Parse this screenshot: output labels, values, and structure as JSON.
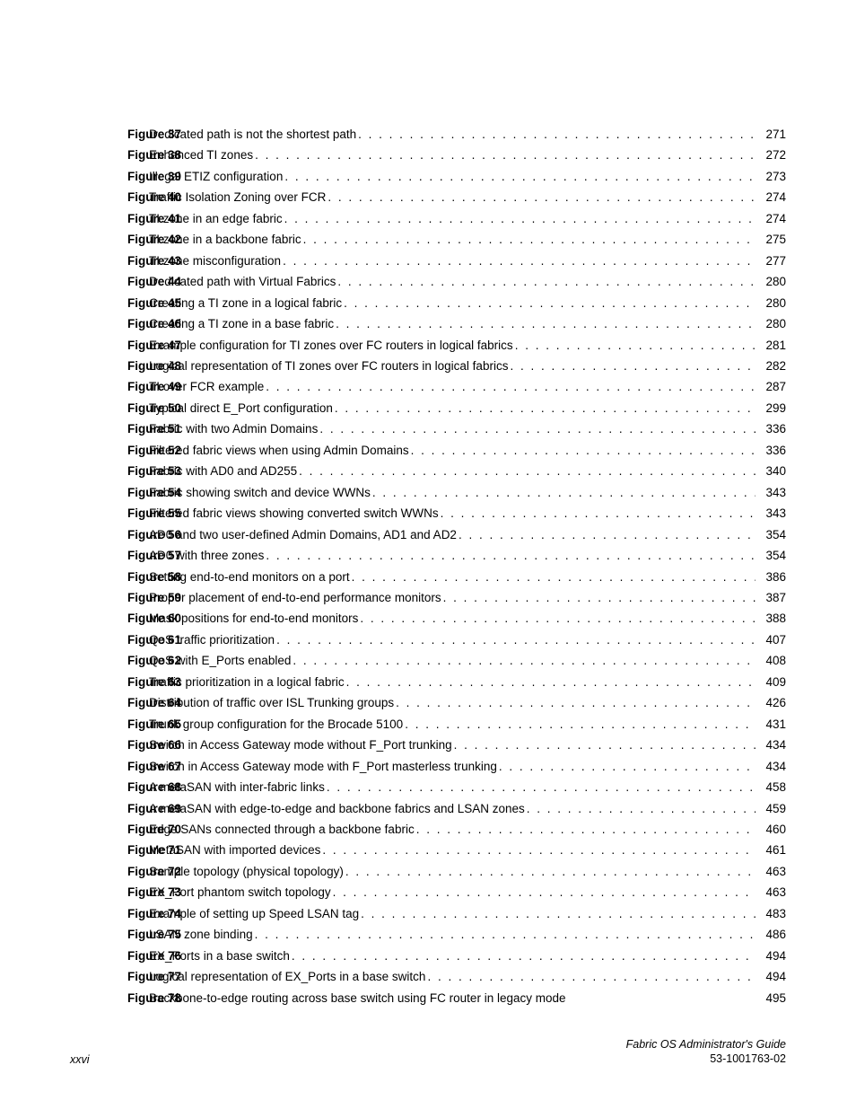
{
  "text_color": "#000000",
  "background_color": "#ffffff",
  "label_font_size": 13.5,
  "label_font_weight": "bold",
  "body_font_size": 13.5,
  "line_height": 23.45,
  "footer_font_size": 12.5,
  "figures": [
    {
      "num": "Figure 37",
      "title": "Dedicated path is not the shortest path",
      "page": "271"
    },
    {
      "num": "Figure 38",
      "title": "Enhanced TI zones",
      "page": "272"
    },
    {
      "num": "Figure 39",
      "title": "Illegal ETIZ configuration",
      "page": "273"
    },
    {
      "num": "Figure 40",
      "title": "Traffic Isolation Zoning over FCR",
      "page": "274"
    },
    {
      "num": "Figure 41",
      "title": "TI zone in an edge fabric",
      "page": "274"
    },
    {
      "num": "Figure 42",
      "title": "TI zone in a backbone fabric",
      "page": "275"
    },
    {
      "num": "Figure 43",
      "title": "TI zone misconfiguration",
      "page": "277"
    },
    {
      "num": "Figure 44",
      "title": "Dedicated path with Virtual Fabrics",
      "page": "280"
    },
    {
      "num": "Figure 45",
      "title": "Creating a TI zone in a logical fabric",
      "page": "280"
    },
    {
      "num": "Figure 46",
      "title": "Creating a TI zone in a base fabric",
      "page": "280"
    },
    {
      "num": "Figure 47",
      "title": "Example configuration for TI zones over FC routers in logical fabrics",
      "page": "281"
    },
    {
      "num": "Figure 48",
      "title": "Logical representation of TI zones over FC routers in logical fabrics",
      "page": "282"
    },
    {
      "num": "Figure 49",
      "title": "TI over FCR example",
      "page": "287"
    },
    {
      "num": "Figure 50",
      "title": "Typical direct E_Port configuration",
      "page": "299"
    },
    {
      "num": "Figure 51",
      "title": "Fabric with two Admin Domains",
      "page": "336"
    },
    {
      "num": "Figure 52",
      "title": "Filtered fabric views when using Admin Domains",
      "page": "336"
    },
    {
      "num": "Figure 53",
      "title": "Fabric with AD0 and AD255",
      "page": "340"
    },
    {
      "num": "Figure 54",
      "title": "Fabric showing switch and device WWNs",
      "page": "343"
    },
    {
      "num": "Figure 55",
      "title": "Filtered fabric views showing converted switch WWNs",
      "page": "343"
    },
    {
      "num": "Figure 56",
      "title": "AD0 and two user-defined Admin Domains, AD1 and AD2",
      "page": "354"
    },
    {
      "num": "Figure 57",
      "title": "AD0 with three zones",
      "page": "354"
    },
    {
      "num": "Figure 58",
      "title": "Setting end-to-end monitors on a port",
      "page": "386"
    },
    {
      "num": "Figure 59",
      "title": "Proper placement of end-to-end performance monitors",
      "page": "387"
    },
    {
      "num": "Figure 60",
      "title": "Mask positions for end-to-end monitors",
      "page": "388"
    },
    {
      "num": "Figure 61",
      "title": "QoS traffic prioritization",
      "page": "407"
    },
    {
      "num": "Figure 62",
      "title": "QoS with E_Ports enabled",
      "page": "408"
    },
    {
      "num": "Figure 63",
      "title": "Traffic prioritization in a logical fabric",
      "page": "409"
    },
    {
      "num": "Figure 64",
      "title": "Distribution of traffic over ISL Trunking groups",
      "page": "426"
    },
    {
      "num": "Figure 65",
      "title": "Trunk group configuration for the Brocade 5100",
      "page": "431"
    },
    {
      "num": "Figure 66",
      "title": "Switch in Access Gateway mode without F_Port trunking",
      "page": "434"
    },
    {
      "num": "Figure 67",
      "title": "Switch in Access Gateway mode with F_Port masterless trunking",
      "page": "434"
    },
    {
      "num": "Figure 68",
      "title": "A metaSAN with inter-fabric links",
      "page": "458"
    },
    {
      "num": "Figure 69",
      "title": "A metaSAN with edge-to-edge and backbone fabrics and LSAN zones",
      "page": "459"
    },
    {
      "num": "Figure 70",
      "title": "Edge SANs connected through a backbone fabric",
      "page": "460"
    },
    {
      "num": "Figure 71",
      "title": "MetaSAN with imported devices",
      "page": "461"
    },
    {
      "num": "Figure 72",
      "title": "Sample topology (physical topology)",
      "page": "463"
    },
    {
      "num": "Figure 73",
      "title": "EX_Port phantom switch topology",
      "page": "463"
    },
    {
      "num": "Figure 74",
      "title": "Example of setting up Speed LSAN tag",
      "page": "483"
    },
    {
      "num": "Figure 75",
      "title": "LSAN zone binding",
      "page": "486"
    },
    {
      "num": "Figure 76",
      "title": "EX_Ports in a base switch",
      "page": "494"
    },
    {
      "num": "Figure 77",
      "title": "Logical representation of EX_Ports in a base switch",
      "page": "494"
    },
    {
      "num": "Figure 78",
      "title": "Backbone-to-edge routing across base switch using FC router in legacy mode",
      "page": "495",
      "no_dots": true
    }
  ],
  "footer": {
    "page_num": "xxvi",
    "doc_title": "Fabric OS Administrator's Guide",
    "doc_number": "53-1001763-02"
  }
}
